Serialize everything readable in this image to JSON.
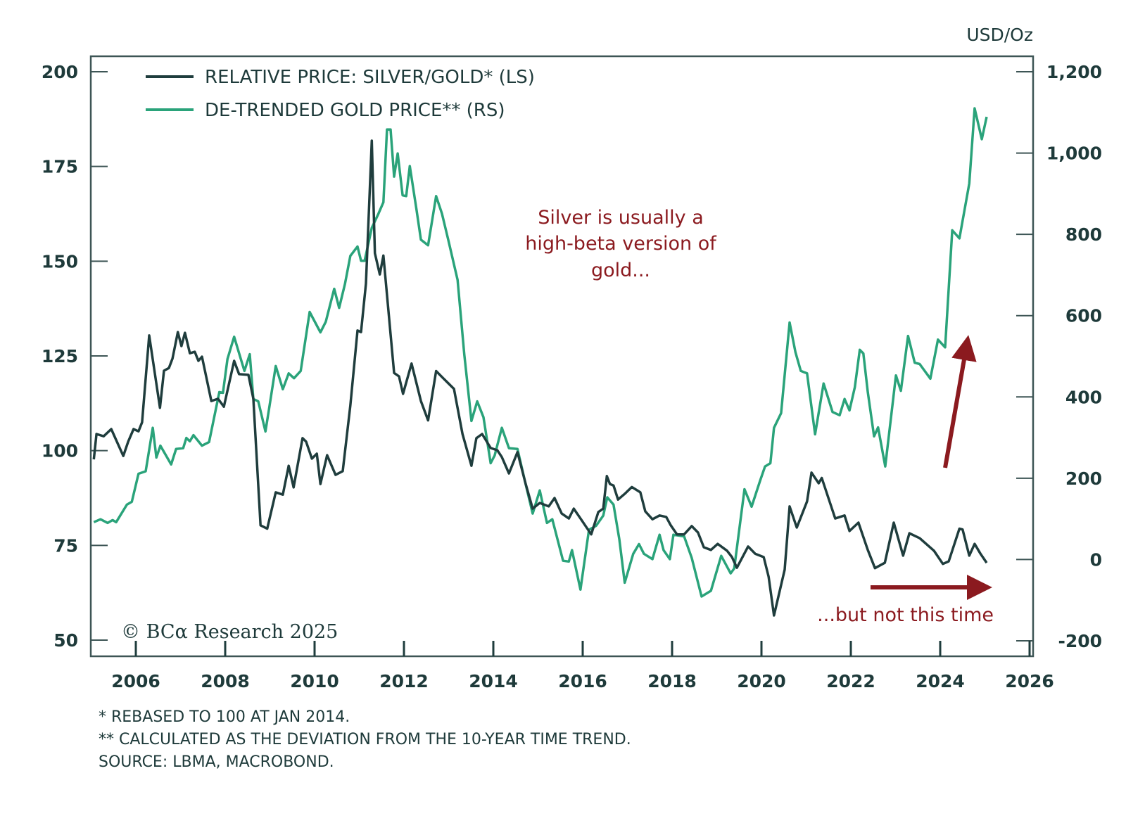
{
  "chart_data": {
    "type": "line",
    "title": "",
    "unit_label_right": "USD/Oz",
    "xlabel": "",
    "x_ticks": [
      "2006",
      "2008",
      "2010",
      "2012",
      "2014",
      "2016",
      "2018",
      "2020",
      "2022",
      "2024",
      "2026"
    ],
    "x_range": [
      2005.0,
      2026.08
    ],
    "left_axis": {
      "ylim": [
        50,
        200
      ],
      "ticks": [
        "50",
        "75",
        "100",
        "125",
        "150",
        "175",
        "200"
      ]
    },
    "right_axis": {
      "ylim": [
        -200,
        1200
      ],
      "ticks": [
        "-200",
        "0",
        "200",
        "400",
        "600",
        "800",
        "1,000",
        "1,200"
      ]
    },
    "legend": {
      "placement": "top-left",
      "entries": [
        {
          "label": "RELATIVE PRICE: SILVER/GOLD* (LS)",
          "color": "#1f3d3d"
        },
        {
          "label": "DE-TRENDED GOLD PRICE** (RS)",
          "color": "#2aa37a"
        }
      ]
    },
    "series": [
      {
        "name": "RELATIVE PRICE: SILVER/GOLD* (LS)",
        "axis": "left",
        "color": "#1f3d3d",
        "x": [
          2005.06,
          2005.12,
          2005.28,
          2005.45,
          2005.72,
          2005.83,
          2005.95,
          2006.06,
          2006.14,
          2006.3,
          2006.54,
          2006.63,
          2006.74,
          2006.82,
          2006.94,
          2007.02,
          2007.1,
          2007.21,
          2007.32,
          2007.4,
          2007.48,
          2007.69,
          2007.84,
          2007.97,
          2008.2,
          2008.31,
          2008.52,
          2008.63,
          2008.79,
          2008.94,
          2009.13,
          2009.29,
          2009.42,
          2009.53,
          2009.73,
          2009.81,
          2009.94,
          2010.05,
          2010.13,
          2010.28,
          2010.47,
          2010.63,
          2010.8,
          2010.96,
          2011.04,
          2011.15,
          2011.28,
          2011.35,
          2011.46,
          2011.54,
          2011.78,
          2011.89,
          2011.98,
          2012.17,
          2012.38,
          2012.54,
          2012.72,
          2012.88,
          2013.12,
          2013.31,
          2013.51,
          2013.62,
          2013.75,
          2013.94,
          2014.09,
          2014.19,
          2014.35,
          2014.54,
          2014.72,
          2014.88,
          2015.04,
          2015.24,
          2015.37,
          2015.53,
          2015.69,
          2015.8,
          2015.98,
          2016.19,
          2016.35,
          2016.46,
          2016.54,
          2016.61,
          2016.69,
          2016.79,
          2016.94,
          2017.1,
          2017.29,
          2017.4,
          2017.56,
          2017.72,
          2017.87,
          2017.97,
          2018.11,
          2018.27,
          2018.44,
          2018.58,
          2018.71,
          2018.87,
          2019.02,
          2019.23,
          2019.34,
          2019.45,
          2019.7,
          2019.86,
          2020.05,
          2020.16,
          2020.28,
          2020.52,
          2020.63,
          2020.79,
          2021.02,
          2021.12,
          2021.28,
          2021.35,
          2021.65,
          2021.86,
          2021.97,
          2022.17,
          2022.38,
          2022.54,
          2022.76,
          2022.96,
          2023.17,
          2023.31,
          2023.54,
          2023.86,
          2024.06,
          2024.19,
          2024.43,
          2024.5,
          2024.65,
          2024.77,
          2024.9,
          2025.04
        ],
        "values": [
          97.7,
          104.4,
          103.8,
          105.7,
          98.6,
          102.4,
          105.7,
          105.1,
          107.5,
          130.4,
          111.3,
          121.1,
          121.8,
          124.3,
          131.3,
          127.6,
          131.1,
          125.7,
          126.1,
          123.7,
          124.8,
          113.1,
          113.7,
          111.6,
          123.7,
          120.2,
          120.0,
          113.7,
          80.3,
          79.4,
          89.0,
          88.4,
          96.0,
          90.3,
          103.3,
          102.4,
          97.9,
          99.2,
          91.2,
          98.8,
          93.6,
          94.6,
          111.9,
          131.7,
          131.3,
          144.1,
          181.8,
          152.1,
          146.5,
          151.5,
          120.5,
          119.6,
          115.0,
          123.0,
          113.1,
          108.0,
          121.0,
          119.1,
          116.3,
          104.4,
          96.0,
          103.3,
          104.4,
          100.7,
          100.1,
          98.3,
          94.0,
          99.6,
          91.4,
          84.7,
          86.2,
          85.3,
          87.5,
          83.4,
          82.1,
          84.7,
          81.6,
          77.9,
          83.8,
          84.7,
          93.3,
          91.2,
          90.8,
          87.1,
          88.6,
          90.4,
          89.0,
          84.0,
          81.9,
          82.9,
          82.5,
          80.3,
          77.9,
          77.9,
          80.1,
          78.4,
          74.5,
          73.8,
          75.4,
          73.6,
          71.9,
          69.1,
          74.7,
          72.8,
          71.9,
          66.7,
          56.5,
          68.6,
          85.3,
          79.7,
          86.6,
          94.2,
          91.4,
          92.8,
          82.1,
          82.9,
          78.8,
          81.0,
          73.8,
          69.0,
          70.4,
          81.0,
          72.3,
          78.2,
          76.9,
          73.6,
          70.1,
          70.8,
          79.4,
          79.2,
          72.3,
          75.4,
          72.8,
          70.4
        ]
      },
      {
        "name": "DE-TRENDED GOLD PRICE** (RS)",
        "axis": "right",
        "color": "#2aa37a",
        "x": [
          2005.06,
          2005.21,
          2005.37,
          2005.48,
          2005.56,
          2005.8,
          2005.91,
          2006.06,
          2006.22,
          2006.38,
          2006.46,
          2006.55,
          2006.79,
          2006.9,
          2007.06,
          2007.13,
          2007.21,
          2007.29,
          2007.48,
          2007.64,
          2007.87,
          2007.95,
          2008.05,
          2008.2,
          2008.43,
          2008.55,
          2008.63,
          2008.74,
          2008.9,
          2008.99,
          2009.13,
          2009.29,
          2009.42,
          2009.54,
          2009.69,
          2009.89,
          2010.13,
          2010.25,
          2010.44,
          2010.55,
          2010.68,
          2010.8,
          2010.96,
          2011.04,
          2011.12,
          2011.28,
          2011.43,
          2011.54,
          2011.62,
          2011.7,
          2011.78,
          2011.86,
          2011.97,
          2012.05,
          2012.13,
          2012.28,
          2012.38,
          2012.54,
          2012.72,
          2012.85,
          2012.99,
          2013.2,
          2013.35,
          2013.51,
          2013.64,
          2013.78,
          2013.94,
          2014.03,
          2014.19,
          2014.35,
          2014.54,
          2014.72,
          2014.88,
          2015.04,
          2015.2,
          2015.32,
          2015.56,
          2015.69,
          2015.76,
          2015.95,
          2016.14,
          2016.3,
          2016.46,
          2016.55,
          2016.69,
          2016.82,
          2016.94,
          2017.13,
          2017.26,
          2017.37,
          2017.56,
          2017.72,
          2017.81,
          2017.95,
          2018.03,
          2018.27,
          2018.44,
          2018.66,
          2018.87,
          2019.1,
          2019.31,
          2019.39,
          2019.62,
          2019.78,
          2019.97,
          2020.08,
          2020.2,
          2020.28,
          2020.44,
          2020.63,
          2020.76,
          2020.88,
          2021.02,
          2021.2,
          2021.39,
          2021.59,
          2021.75,
          2021.86,
          2021.97,
          2022.09,
          2022.2,
          2022.28,
          2022.38,
          2022.52,
          2022.61,
          2022.77,
          2023.01,
          2023.12,
          2023.28,
          2023.43,
          2023.54,
          2023.78,
          2023.95,
          2024.11,
          2024.27,
          2024.43,
          2024.65,
          2024.77,
          2024.93,
          2025.04
        ],
        "values": [
          92,
          99,
          90,
          97,
          92,
          135,
          142,
          211,
          217,
          324,
          251,
          280,
          234,
          272,
          274,
          299,
          291,
          306,
          280,
          289,
          412,
          410,
          493,
          548,
          464,
          505,
          395,
          389,
          315,
          377,
          476,
          419,
          458,
          446,
          464,
          609,
          559,
          585,
          666,
          619,
          678,
          747,
          770,
          735,
          735,
          816,
          851,
          879,
          1058,
          1058,
          942,
          999,
          896,
          894,
          968,
          861,
          787,
          773,
          894,
          851,
          787,
          688,
          505,
          341,
          389,
          350,
          237,
          256,
          324,
          274,
          272,
          187,
          113,
          170,
          90,
          99,
          -3,
          -5,
          23,
          -74,
          73,
          83,
          108,
          153,
          135,
          49,
          -57,
          14,
          38,
          14,
          1,
          61,
          23,
          1,
          61,
          57,
          4,
          -91,
          -77,
          9,
          -34,
          -22,
          173,
          130,
          194,
          229,
          237,
          324,
          360,
          583,
          510,
          464,
          458,
          308,
          433,
          363,
          355,
          395,
          367,
          424,
          516,
          507,
          412,
          303,
          325,
          229,
          453,
          415,
          550,
          484,
          481,
          445,
          541,
          522,
          810,
          790,
          925,
          1110,
          1034,
          1089
        ]
      }
    ],
    "annotations": {
      "beta_note": [
        "Silver is usually a",
        "high-beta version of",
        "gold..."
      ],
      "but_note": "...but not this time",
      "color": "#8b1a1f"
    },
    "copyright": "© BCα Research 2025",
    "footnotes": [
      "*  REBASED TO 100 AT JAN 2014.",
      "** CALCULATED AS THE DEVIATION FROM THE 10-YEAR TIME TREND.",
      "SOURCE: LBMA, MACROBOND."
    ]
  }
}
